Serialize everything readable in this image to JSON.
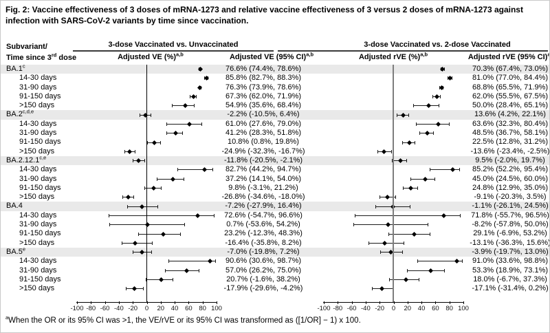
{
  "title": "Fig. 2: Vaccine effectiveness of 3 doses of mRNA-1273 and relative vaccine effectiveness of 3 versus 2 doses of mRNA-1273 against infection with SARS-CoV-2 variants by time since vaccination.",
  "header": {
    "row_header_line1": "Subvariant/",
    "row_header_line2_prefix": "Time since 3",
    "row_header_ordinal": "rd",
    "row_header_line2_suffix": " dose",
    "group1": "3-dose Vaccinated vs. Unvaccinated",
    "group2": "3-dose Vaccinated vs. 2-dose Vaccinated",
    "col1": "Adjusted VE (%)",
    "col2": "Adjusted VE (95% CI)",
    "col3": "Adjusted rVE (%)",
    "col4": "Adjusted rVE (95% CI)",
    "col_footnote_sup": "a,b"
  },
  "footnote": {
    "sup": "a",
    "text": "When the OR or its 95% CI was >1, the VE/rVE or its 95% CI was transformed as ([1/OR] − 1) x 100."
  },
  "chart_data": {
    "type": "forest",
    "xlim": [
      -100,
      100
    ],
    "ticks": [
      -100,
      -80,
      -60,
      -40,
      -20,
      0,
      20,
      40,
      60,
      80,
      100
    ],
    "panels": [
      {
        "name": "3-dose Vaccinated vs. Unvaccinated",
        "measure": "Adjusted VE (%)"
      },
      {
        "name": "3-dose Vaccinated vs. 2-dose Vaccinated",
        "measure": "Adjusted rVE (%)"
      }
    ],
    "rows": [
      {
        "label": "BA.1",
        "sup": "c",
        "header": true,
        "ve": {
          "est": 76.6,
          "lo": 74.4,
          "hi": 78.6,
          "text": "76.6% (74.4%, 78.6%)"
        },
        "rve": {
          "est": 70.3,
          "lo": 67.4,
          "hi": 73.0,
          "text": "70.3% (67.4%, 73.0%)"
        }
      },
      {
        "label": "14-30 days",
        "sup": "",
        "header": false,
        "ve": {
          "est": 85.8,
          "lo": 82.7,
          "hi": 88.3,
          "text": "85.8% (82.7%, 88.3%)"
        },
        "rve": {
          "est": 81.0,
          "lo": 77.0,
          "hi": 84.4,
          "text": "81.0% (77.0%, 84.4%)"
        }
      },
      {
        "label": "31-90 days",
        "sup": "",
        "header": false,
        "ve": {
          "est": 76.3,
          "lo": 73.9,
          "hi": 78.6,
          "text": "76.3% (73.9%, 78.6%)"
        },
        "rve": {
          "est": 68.8,
          "lo": 65.5,
          "hi": 71.9,
          "text": "68.8% (65.5%, 71.9%)"
        }
      },
      {
        "label": "91-150 days",
        "sup": "",
        "header": false,
        "ve": {
          "est": 67.3,
          "lo": 62.0,
          "hi": 71.9,
          "text": "67.3% (62.0%, 71.9%)"
        },
        "rve": {
          "est": 62.0,
          "lo": 55.5,
          "hi": 67.5,
          "text": "62.0% (55.5%, 67.5%)"
        }
      },
      {
        "label": ">150 days",
        "sup": "",
        "header": false,
        "ve": {
          "est": 54.9,
          "lo": 35.6,
          "hi": 68.4,
          "text": "54.9% (35.6%, 68.4%)"
        },
        "rve": {
          "est": 50.0,
          "lo": 28.4,
          "hi": 65.1,
          "text": "50.0% (28.4%, 65.1%)"
        }
      },
      {
        "label": "BA.2",
        "sup": "c,d,e",
        "header": true,
        "ve": {
          "est": -2.2,
          "lo": -10.5,
          "hi": 6.4,
          "text": "-2.2% (-10.5%, 6.4%)"
        },
        "rve": {
          "est": 13.6,
          "lo": 4.2,
          "hi": 22.1,
          "text": "13.6% (4.2%, 22.1%)"
        }
      },
      {
        "label": "14-30 days",
        "sup": "",
        "header": false,
        "ve": {
          "est": 61.0,
          "lo": 27.6,
          "hi": 79.0,
          "text": "61.0% (27.6%, 79.0%)"
        },
        "rve": {
          "est": 63.6,
          "lo": 32.3,
          "hi": 80.4,
          "text": "63.6% (32.3%, 80.4%)"
        }
      },
      {
        "label": "31-90 days",
        "sup": "",
        "header": false,
        "ve": {
          "est": 41.2,
          "lo": 28.3,
          "hi": 51.8,
          "text": "41.2% (28.3%, 51.8%)"
        },
        "rve": {
          "est": 48.5,
          "lo": 36.7,
          "hi": 58.1,
          "text": "48.5% (36.7%, 58.1%)"
        }
      },
      {
        "label": "91-150 days",
        "sup": "",
        "header": false,
        "ve": {
          "est": 10.8,
          "lo": 0.8,
          "hi": 19.8,
          "text": "10.8% (0.8%, 19.8%)"
        },
        "rve": {
          "est": 22.5,
          "lo": 12.8,
          "hi": 31.2,
          "text": "22.5% (12.8%, 31.2%)"
        }
      },
      {
        "label": ">150 days",
        "sup": "",
        "header": false,
        "ve": {
          "est": -24.9,
          "lo": -32.3,
          "hi": -16.7,
          "text": "-24.9% (-32.3%, -16.7%)"
        },
        "rve": {
          "est": -13.6,
          "lo": -23.4,
          "hi": -2.5,
          "text": "-13.6% (-23.4%, -2.5%)"
        }
      },
      {
        "label": "BA.2.12.1",
        "sup": "c,e",
        "header": true,
        "ve": {
          "est": -11.8,
          "lo": -20.5,
          "hi": -2.1,
          "text": "-11.8% (-20.5%, -2.1%)"
        },
        "rve": {
          "est": 9.5,
          "lo": -2.0,
          "hi": 19.7,
          "text": "9.5% (-2.0%, 19.7%)"
        }
      },
      {
        "label": "14-30 days",
        "sup": "",
        "header": false,
        "ve": {
          "est": 82.7,
          "lo": 44.2,
          "hi": 94.7,
          "text": "82.7% (44.2%, 94.7%)"
        },
        "rve": {
          "est": 85.2,
          "lo": 52.2,
          "hi": 95.4,
          "text": "85.2% (52.2%, 95.4%)"
        }
      },
      {
        "label": "31-90 days",
        "sup": "",
        "header": false,
        "ve": {
          "est": 37.2,
          "lo": 14.1,
          "hi": 54.0,
          "text": "37.2% (14.1%, 54.0%)"
        },
        "rve": {
          "est": 45.0,
          "lo": 24.5,
          "hi": 60.0,
          "text": "45.0% (24.5%, 60.0%)"
        }
      },
      {
        "label": "91-150 days",
        "sup": "",
        "header": false,
        "ve": {
          "est": 9.8,
          "lo": -3.1,
          "hi": 21.2,
          "text": "9.8% (-3.1%, 21.2%)"
        },
        "rve": {
          "est": 24.8,
          "lo": 12.9,
          "hi": 35.0,
          "text": "24.8% (12.9%, 35.0%)"
        }
      },
      {
        "label": ">150 days",
        "sup": "",
        "header": false,
        "ve": {
          "est": -26.8,
          "lo": -34.6,
          "hi": -18.0,
          "text": "-26.8% (-34.6%, -18.0%)"
        },
        "rve": {
          "est": -9.1,
          "lo": -20.3,
          "hi": 3.5,
          "text": "-9.1% (-20.3%, 3.5%)"
        }
      },
      {
        "label": "BA.4",
        "sup": "",
        "header": true,
        "ve": {
          "est": -7.2,
          "lo": -27.9,
          "hi": 16.4,
          "text": "-7.2% (-27.9%, 16.4%)"
        },
        "rve": {
          "est": -1.1,
          "lo": -26.1,
          "hi": 24.5,
          "text": "-1.1% (-26.1%, 24.5%)"
        }
      },
      {
        "label": "14-30 days",
        "sup": "",
        "header": false,
        "ve": {
          "est": 72.6,
          "lo": -54.7,
          "hi": 96.6,
          "text": "72.6% (-54.7%, 96.6%)"
        },
        "rve": {
          "est": 71.8,
          "lo": -55.7,
          "hi": 96.5,
          "text": "71.8% (-55.7%, 96.5%)"
        }
      },
      {
        "label": "31-90 days",
        "sup": "",
        "header": false,
        "ve": {
          "est": 0.7,
          "lo": -53.6,
          "hi": 54.2,
          "text": "0.7% (-53.6%, 54.2%)"
        },
        "rve": {
          "est": -8.2,
          "lo": -57.8,
          "hi": 50.0,
          "text": "-8.2% (-57.8%, 50.0%)"
        }
      },
      {
        "label": "91-150 days",
        "sup": "",
        "header": false,
        "ve": {
          "est": 23.2,
          "lo": -12.3,
          "hi": 48.3,
          "text": "23.2% (-12.3%, 48.3%)"
        },
        "rve": {
          "est": 29.1,
          "lo": -6.9,
          "hi": 53.2,
          "text": "29.1% (-6.9%, 53.2%)"
        }
      },
      {
        "label": ">150 days",
        "sup": "",
        "header": false,
        "ve": {
          "est": -16.4,
          "lo": -35.8,
          "hi": 8.2,
          "text": "-16.4% (-35.8%, 8.2%)"
        },
        "rve": {
          "est": -13.1,
          "lo": -36.3,
          "hi": 15.6,
          "text": "-13.1% (-36.3%, 15.6%)"
        }
      },
      {
        "label": "BA.5",
        "sup": "e",
        "header": true,
        "ve": {
          "est": -7.0,
          "lo": -19.8,
          "hi": 7.2,
          "text": "-7.0% (-19.8%, 7.2%)"
        },
        "rve": {
          "est": -3.9,
          "lo": -19.7,
          "hi": 13.0,
          "text": "-3.9% (-19.7%, 13.0%)"
        }
      },
      {
        "label": "14-30 days",
        "sup": "",
        "header": false,
        "ve": {
          "est": 90.6,
          "lo": 30.6,
          "hi": 98.7,
          "text": "90.6% (30.6%, 98.7%)"
        },
        "rve": {
          "est": 91.0,
          "lo": 33.6,
          "hi": 98.8,
          "text": "91.0% (33.6%, 98.8%)"
        }
      },
      {
        "label": "31-90 days",
        "sup": "",
        "header": false,
        "ve": {
          "est": 57.0,
          "lo": 26.2,
          "hi": 75.0,
          "text": "57.0% (26.2%, 75.0%)"
        },
        "rve": {
          "est": 53.3,
          "lo": 18.9,
          "hi": 73.1,
          "text": "53.3% (18.9%, 73.1%)"
        }
      },
      {
        "label": "91-150 days",
        "sup": "",
        "header": false,
        "ve": {
          "est": 20.7,
          "lo": -1.6,
          "hi": 38.2,
          "text": "20.7% (-1.6%, 38.2%)"
        },
        "rve": {
          "est": 18.0,
          "lo": -6.7,
          "hi": 37.3,
          "text": "18.0% (-6.7%, 37.3%)"
        }
      },
      {
        "label": ">150 days",
        "sup": "",
        "header": false,
        "ve": {
          "est": -17.9,
          "lo": -29.6,
          "hi": -4.2,
          "text": "-17.9% (-29.6%, -4.2%)"
        },
        "rve": {
          "est": -17.1,
          "lo": -31.4,
          "hi": 0.2,
          "text": "-17.1% (-31.4%, 0.2%)"
        }
      }
    ]
  }
}
